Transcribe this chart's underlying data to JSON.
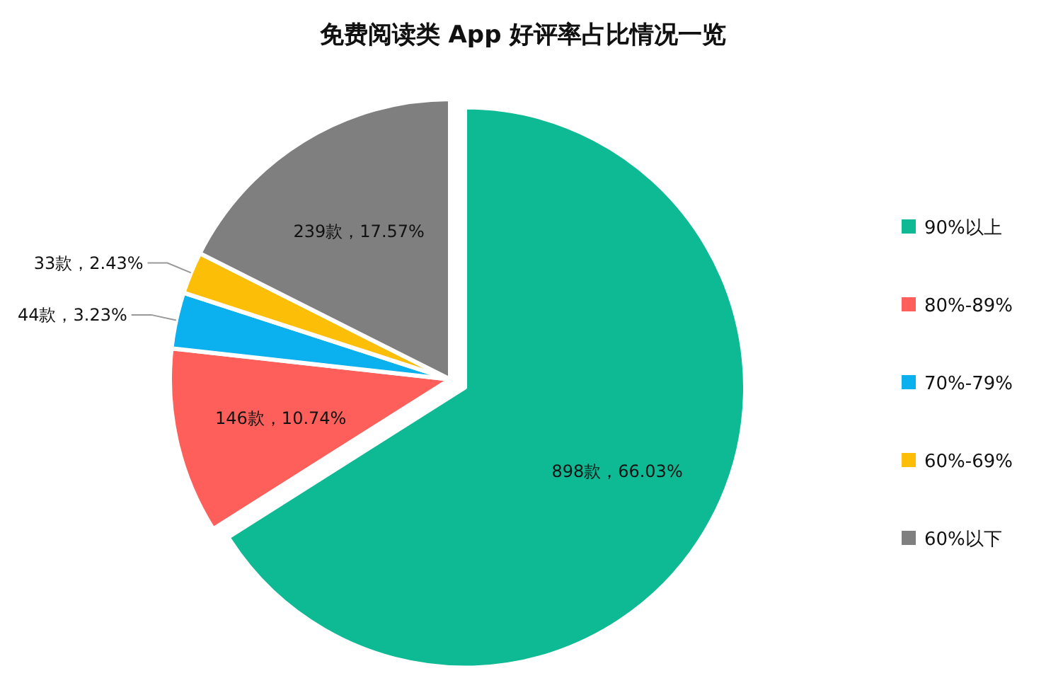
{
  "chart_data": {
    "type": "pie",
    "title": "免费阅读类 App 好评率占比情况一览",
    "categories": [
      "90%以上",
      "80%-89%",
      "70%-79%",
      "60%-69%",
      "60%以下"
    ],
    "values": [
      898,
      146,
      44,
      33,
      239
    ],
    "value_labels": [
      "898款，66.03%",
      "146款，10.74%",
      "44款，3.23%",
      "33款，2.43%",
      "239款，17.57%"
    ],
    "colors": [
      "#0dba93",
      "#fe5f5a",
      "#0bb0ef",
      "#fcbe06",
      "#7f7f7f"
    ],
    "legend": "right"
  }
}
